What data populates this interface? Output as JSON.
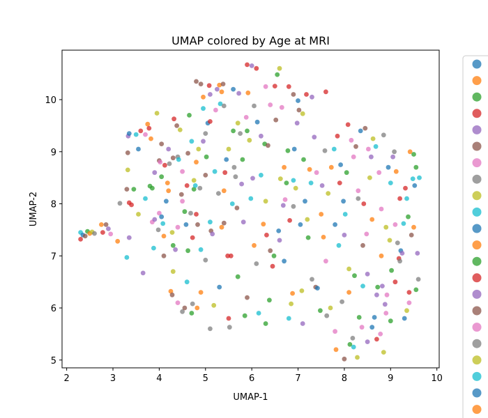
{
  "chart_data": {
    "type": "scatter",
    "title": "UMAP colored by Age at MRI",
    "xlabel": "UMAP-1",
    "ylabel": "UMAP-2",
    "xlim": [
      1.9,
      10.05
    ],
    "ylim": [
      4.85,
      10.95
    ],
    "xticks": [
      2,
      3,
      4,
      5,
      6,
      7,
      8,
      9,
      10
    ],
    "yticks": [
      5,
      6,
      7,
      8,
      9,
      10
    ],
    "grid": false,
    "legend": "outside-right, clipped, markers only",
    "marker_alpha": 0.75,
    "colors": [
      "#1f77b4",
      "#ff7f0e",
      "#2ca02c",
      "#d62728",
      "#9467bd",
      "#8c564b",
      "#e377c2",
      "#7f7f7f",
      "#bcbd22",
      "#17becf"
    ],
    "legend_marker_count": 23,
    "points": [
      [
        2.3,
        7.32,
        3
      ],
      [
        2.3,
        7.45,
        9
      ],
      [
        2.35,
        7.4,
        0
      ],
      [
        2.4,
        7.38,
        5
      ],
      [
        2.45,
        7.47,
        2
      ],
      [
        2.5,
        7.43,
        1
      ],
      [
        2.55,
        7.46,
        8
      ],
      [
        2.6,
        7.43,
        7
      ],
      [
        2.75,
        7.6,
        1
      ],
      [
        2.78,
        7.45,
        3
      ],
      [
        2.85,
        7.6,
        5
      ],
      [
        2.9,
        7.52,
        4
      ],
      [
        2.95,
        7.42,
        6
      ],
      [
        3.1,
        7.28,
        1
      ],
      [
        3.15,
        8.01,
        7
      ],
      [
        3.3,
        6.97,
        9
      ],
      [
        3.35,
        7.35,
        4
      ],
      [
        3.3,
        8.28,
        5
      ],
      [
        3.32,
        8.65,
        8
      ],
      [
        3.32,
        8.98,
        5
      ],
      [
        3.33,
        9.3,
        4
      ],
      [
        3.35,
        9.35,
        0
      ],
      [
        3.35,
        8.02,
        3
      ],
      [
        3.4,
        7.98,
        3
      ],
      [
        3.45,
        8.28,
        2
      ],
      [
        3.5,
        9.33,
        9
      ],
      [
        3.55,
        9.05,
        0
      ],
      [
        3.55,
        7.8,
        8
      ],
      [
        3.6,
        9.4,
        3
      ],
      [
        3.65,
        6.67,
        4
      ],
      [
        3.7,
        9.33,
        6
      ],
      [
        3.75,
        9.53,
        1
      ],
      [
        3.78,
        9.45,
        3
      ],
      [
        3.8,
        8.34,
        2
      ],
      [
        3.82,
        9.25,
        1
      ],
      [
        3.85,
        8.3,
        2
      ],
      [
        3.85,
        7.65,
        6
      ],
      [
        3.88,
        7.15,
        9
      ],
      [
        3.9,
        7.7,
        4
      ],
      [
        3.95,
        9.74,
        8
      ],
      [
        3.98,
        7.5,
        7
      ],
      [
        4.0,
        7.82,
        6
      ],
      [
        4.0,
        8.83,
        5
      ],
      [
        4.02,
        8.8,
        6
      ],
      [
        4.05,
        9.15,
        5
      ],
      [
        4.05,
        7.75,
        0
      ],
      [
        4.05,
        8.52,
        2
      ],
      [
        4.08,
        7.62,
        9
      ],
      [
        4.1,
        7.38,
        1
      ],
      [
        4.1,
        7.0,
        5
      ],
      [
        4.12,
        8.74,
        3
      ],
      [
        4.15,
        8.05,
        0
      ],
      [
        4.18,
        8.4,
        1
      ],
      [
        4.2,
        9.05,
        4
      ],
      [
        4.22,
        8.77,
        7
      ],
      [
        4.25,
        6.32,
        1
      ],
      [
        4.28,
        6.25,
        5
      ],
      [
        4.28,
        7.45,
        8
      ],
      [
        4.3,
        8.88,
        5
      ],
      [
        4.3,
        7.2,
        2
      ],
      [
        4.32,
        9.63,
        3
      ],
      [
        4.35,
        7.12,
        4
      ],
      [
        4.38,
        9.5,
        5
      ],
      [
        4.4,
        7.55,
        6
      ],
      [
        4.4,
        8.9,
        7
      ],
      [
        4.42,
        8.85,
        9
      ],
      [
        4.45,
        9.42,
        8
      ],
      [
        4.48,
        8.18,
        5
      ],
      [
        4.5,
        5.93,
        7
      ],
      [
        4.5,
        8.62,
        6
      ],
      [
        4.55,
        6.0,
        5
      ],
      [
        4.55,
        7.85,
        2
      ],
      [
        4.58,
        7.6,
        0
      ],
      [
        4.6,
        8.35,
        3
      ],
      [
        4.62,
        7.1,
        2
      ],
      [
        4.62,
        8.97,
        5
      ],
      [
        4.65,
        9.7,
        2
      ],
      [
        4.68,
        7.82,
        7
      ],
      [
        4.7,
        9.2,
        9
      ],
      [
        4.72,
        7.35,
        3
      ],
      [
        4.72,
        6.08,
        7
      ],
      [
        4.75,
        8.28,
        2
      ],
      [
        4.75,
        8.45,
        8
      ],
      [
        4.78,
        8.35,
        9
      ],
      [
        4.8,
        8.8,
        1
      ],
      [
        4.8,
        10.35,
        5
      ],
      [
        4.82,
        6.0,
        1
      ],
      [
        4.83,
        7.6,
        5
      ],
      [
        4.85,
        9.05,
        8
      ],
      [
        4.88,
        8.3,
        7
      ],
      [
        4.9,
        10.3,
        5
      ],
      [
        4.9,
        7.12,
        9
      ],
      [
        4.95,
        9.83,
        9
      ],
      [
        4.95,
        9.2,
        4
      ],
      [
        5.0,
        8.55,
        5
      ],
      [
        5.0,
        9.35,
        7
      ],
      [
        5.0,
        6.92,
        7
      ],
      [
        5.02,
        8.9,
        2
      ],
      [
        5.05,
        9.55,
        0
      ],
      [
        5.08,
        10.27,
        3
      ],
      [
        5.1,
        9.58,
        3
      ],
      [
        5.1,
        10.1,
        4
      ],
      [
        5.12,
        7.48,
        5
      ],
      [
        5.15,
        7.42,
        4
      ],
      [
        5.18,
        6.05,
        8
      ],
      [
        5.2,
        8.62,
        9
      ],
      [
        5.22,
        9.8,
        6
      ],
      [
        5.25,
        10.2,
        4
      ],
      [
        5.28,
        8.2,
        7
      ],
      [
        5.3,
        10.28,
        1
      ],
      [
        5.32,
        9.92,
        9
      ],
      [
        5.35,
        7.55,
        1
      ],
      [
        5.38,
        10.3,
        5
      ],
      [
        5.4,
        7.63,
        5
      ],
      [
        5.4,
        9.88,
        7
      ],
      [
        5.42,
        8.6,
        3
      ],
      [
        5.45,
        8.85,
        0
      ],
      [
        5.48,
        7.0,
        3
      ],
      [
        5.5,
        9.05,
        8
      ],
      [
        5.52,
        5.63,
        7
      ],
      [
        5.55,
        7.0,
        3
      ],
      [
        5.58,
        8.0,
        9
      ],
      [
        5.6,
        9.4,
        2
      ],
      [
        5.62,
        8.7,
        7
      ],
      [
        5.65,
        8.52,
        7
      ],
      [
        5.68,
        7.92,
        5
      ],
      [
        5.7,
        9.55,
        8
      ],
      [
        5.72,
        10.12,
        4
      ],
      [
        5.75,
        9.35,
        7
      ],
      [
        5.78,
        8.38,
        4
      ],
      [
        5.82,
        7.65,
        4
      ],
      [
        5.85,
        5.85,
        2
      ],
      [
        5.88,
        9.66,
        6
      ],
      [
        5.9,
        10.67,
        3
      ],
      [
        5.92,
        10.13,
        1
      ],
      [
        5.95,
        9.22,
        8
      ],
      [
        5.98,
        8.1,
        9
      ],
      [
        6.0,
        10.65,
        4
      ],
      [
        6.02,
        8.49,
        4
      ],
      [
        6.05,
        7.2,
        1
      ],
      [
        6.05,
        9.88,
        7
      ],
      [
        6.1,
        10.6,
        3
      ],
      [
        6.12,
        9.57,
        0
      ],
      [
        6.15,
        5.9,
        9
      ],
      [
        6.2,
        9.3,
        4
      ],
      [
        6.25,
        7.61,
        1
      ],
      [
        6.28,
        9.15,
        2
      ],
      [
        6.3,
        10.25,
        6
      ],
      [
        6.32,
        7.4,
        3
      ],
      [
        6.35,
        9.12,
        5
      ],
      [
        6.38,
        6.15,
        2
      ],
      [
        6.4,
        7.1,
        5
      ],
      [
        6.45,
        6.8,
        3
      ],
      [
        6.48,
        7.0,
        2
      ],
      [
        6.5,
        10.26,
        3
      ],
      [
        6.52,
        9.61,
        5
      ],
      [
        6.55,
        10.48,
        2
      ],
      [
        6.58,
        7.48,
        0
      ],
      [
        6.6,
        10.6,
        8
      ],
      [
        6.62,
        8.48,
        8
      ],
      [
        6.65,
        9.85,
        6
      ],
      [
        6.68,
        7.97,
        4
      ],
      [
        6.7,
        6.9,
        0
      ],
      [
        6.72,
        8.08,
        6
      ],
      [
        6.75,
        8.4,
        2
      ],
      [
        6.78,
        9.02,
        2
      ],
      [
        6.8,
        10.25,
        3
      ],
      [
        6.82,
        7.68,
        3
      ],
      [
        6.85,
        6.08,
        8
      ],
      [
        6.88,
        6.28,
        1
      ],
      [
        6.9,
        8.45,
        9
      ],
      [
        6.92,
        9.05,
        0
      ],
      [
        6.95,
        8.3,
        8
      ],
      [
        6.98,
        9.55,
        4
      ],
      [
        7.0,
        9.98,
        0
      ],
      [
        7.02,
        9.8,
        5
      ],
      [
        7.05,
        7.6,
        0
      ],
      [
        7.08,
        6.33,
        8
      ],
      [
        7.1,
        9.73,
        8
      ],
      [
        7.12,
        8.85,
        2
      ],
      [
        7.15,
        8.05,
        0
      ],
      [
        7.18,
        10.1,
        3
      ],
      [
        7.22,
        7.35,
        2
      ],
      [
        7.25,
        8.66,
        1
      ],
      [
        7.28,
        8.4,
        9
      ],
      [
        7.3,
        6.55,
        7
      ],
      [
        7.35,
        9.28,
        4
      ],
      [
        7.38,
        6.4,
        5
      ],
      [
        7.42,
        6.38,
        0
      ],
      [
        7.48,
        5.95,
        2
      ],
      [
        7.52,
        8.35,
        4
      ],
      [
        7.55,
        7.36,
        1
      ],
      [
        7.58,
        9.02,
        7
      ],
      [
        7.62,
        5.85,
        7
      ],
      [
        7.65,
        8.2,
        8
      ],
      [
        7.7,
        6.0,
        8
      ],
      [
        7.72,
        8.7,
        1
      ],
      [
        7.78,
        9.05,
        9
      ],
      [
        7.82,
        5.2,
        1
      ],
      [
        7.85,
        9.3,
        3
      ],
      [
        7.88,
        7.2,
        9
      ],
      [
        7.92,
        8.75,
        0
      ],
      [
        7.95,
        6.12,
        7
      ],
      [
        7.98,
        8.05,
        0
      ],
      [
        8.0,
        5.02,
        5
      ],
      [
        8.02,
        7.8,
        9
      ],
      [
        8.05,
        8.6,
        2
      ],
      [
        8.08,
        9.52,
        3
      ],
      [
        8.1,
        6.75,
        8
      ],
      [
        8.12,
        5.3,
        2
      ],
      [
        8.15,
        9.22,
        6
      ],
      [
        8.18,
        5.42,
        7
      ],
      [
        8.2,
        8.9,
        6
      ],
      [
        8.22,
        6.62,
        2
      ],
      [
        8.25,
        9.1,
        5
      ],
      [
        8.28,
        5.05,
        8
      ],
      [
        8.3,
        8.25,
        6
      ],
      [
        8.32,
        5.82,
        2
      ],
      [
        8.35,
        9.4,
        0
      ],
      [
        8.38,
        5.63,
        6
      ],
      [
        8.4,
        6.42,
        9
      ],
      [
        8.42,
        8.0,
        3
      ],
      [
        8.45,
        9.45,
        5
      ],
      [
        8.48,
        7.42,
        6
      ],
      [
        8.5,
        6.65,
        4
      ],
      [
        8.52,
        9.05,
        6
      ],
      [
        8.55,
        8.5,
        8
      ],
      [
        8.58,
        8.9,
        4
      ],
      [
        8.6,
        5.63,
        0
      ],
      [
        8.62,
        9.25,
        8
      ],
      [
        8.65,
        5.82,
        0
      ],
      [
        8.68,
        9.1,
        9
      ],
      [
        8.7,
        6.25,
        4
      ],
      [
        8.72,
        6.4,
        2
      ],
      [
        8.75,
        8.6,
        6
      ],
      [
        8.78,
        5.5,
        6
      ],
      [
        8.8,
        7.0,
        1
      ],
      [
        8.82,
        6.42,
        4
      ],
      [
        8.85,
        9.32,
        7
      ],
      [
        8.88,
        6.07,
        4
      ],
      [
        8.9,
        5.9,
        6
      ],
      [
        8.92,
        6.25,
        6
      ],
      [
        8.95,
        8.7,
        0
      ],
      [
        8.98,
        7.3,
        8
      ],
      [
        9.0,
        8.4,
        9
      ],
      [
        9.02,
        6.72,
        2
      ],
      [
        9.05,
        8.9,
        4
      ],
      [
        9.08,
        9.0,
        7
      ],
      [
        9.1,
        7.6,
        6
      ],
      [
        9.12,
        8.62,
        1
      ],
      [
        9.15,
        7.25,
        7
      ],
      [
        9.18,
        6.95,
        3
      ],
      [
        9.2,
        6.9,
        7
      ],
      [
        9.22,
        7.1,
        0
      ],
      [
        9.25,
        7.05,
        4
      ],
      [
        9.28,
        7.62,
        9
      ],
      [
        9.3,
        5.8,
        0
      ],
      [
        9.32,
        8.3,
        3
      ],
      [
        9.35,
        8.1,
        9
      ],
      [
        9.38,
        7.75,
        2
      ],
      [
        9.4,
        6.3,
        3
      ],
      [
        9.42,
        9.0,
        1
      ],
      [
        9.45,
        7.4,
        5
      ],
      [
        9.48,
        8.48,
        9
      ],
      [
        9.5,
        7.55,
        1
      ],
      [
        9.52,
        8.35,
        0
      ],
      [
        9.55,
        8.7,
        2
      ],
      [
        9.58,
        7.05,
        4
      ],
      [
        9.6,
        6.55,
        7
      ],
      [
        9.62,
        8.5,
        9
      ],
      [
        5.35,
        10.15,
        1
      ],
      [
        4.95,
        10.05,
        1
      ],
      [
        5.6,
        10.2,
        0
      ],
      [
        6.9,
        10.1,
        5
      ],
      [
        7.3,
        10.05,
        4
      ],
      [
        7.6,
        10.15,
        3
      ],
      [
        6.4,
        9.9,
        6
      ],
      [
        5.9,
        9.4,
        2
      ],
      [
        6.2,
        8.55,
        9
      ],
      [
        6.7,
        8.7,
        1
      ],
      [
        7.4,
        8.6,
        6
      ],
      [
        7.9,
        8.4,
        3
      ],
      [
        8.3,
        8.1,
        7
      ],
      [
        8.6,
        7.7,
        1
      ],
      [
        8.9,
        7.55,
        8
      ],
      [
        9.1,
        6.5,
        3
      ],
      [
        8.4,
        7.2,
        5
      ],
      [
        7.8,
        7.6,
        0
      ],
      [
        7.2,
        7.7,
        8
      ],
      [
        6.6,
        7.3,
        4
      ],
      [
        6.1,
        6.85,
        7
      ],
      [
        5.7,
        6.6,
        2
      ],
      [
        5.3,
        6.4,
        0
      ],
      [
        4.9,
        6.3,
        1
      ],
      [
        4.6,
        6.5,
        9
      ],
      [
        4.3,
        6.7,
        8
      ],
      [
        7.6,
        6.9,
        6
      ],
      [
        8.1,
        6.3,
        1
      ],
      [
        8.7,
        5.4,
        3
      ],
      [
        9.0,
        5.75,
        2
      ],
      [
        7.8,
        5.55,
        6
      ],
      [
        8.2,
        5.25,
        9
      ],
      [
        8.5,
        5.35,
        4
      ],
      [
        8.85,
        5.15,
        8
      ],
      [
        9.4,
        6.1,
        6
      ],
      [
        9.55,
        6.35,
        2
      ],
      [
        9.35,
        5.95,
        8
      ],
      [
        7.1,
        5.7,
        4
      ],
      [
        6.8,
        5.8,
        9
      ],
      [
        6.3,
        5.7,
        2
      ],
      [
        5.9,
        6.2,
        5
      ],
      [
        5.5,
        5.8,
        3
      ],
      [
        5.1,
        5.6,
        7
      ],
      [
        4.7,
        5.9,
        2
      ],
      [
        4.4,
        6.1,
        6
      ],
      [
        3.7,
        8.1,
        9
      ],
      [
        3.9,
        8.6,
        4
      ],
      [
        4.2,
        8.25,
        1
      ],
      [
        4.5,
        8.05,
        6
      ],
      [
        4.8,
        7.8,
        3
      ],
      [
        5.1,
        7.65,
        9
      ],
      [
        5.4,
        8.25,
        1
      ],
      [
        5.8,
        8.85,
        2
      ],
      [
        6.3,
        8.05,
        8
      ],
      [
        6.9,
        7.95,
        7
      ],
      [
        7.5,
        7.8,
        1
      ],
      [
        8.0,
        7.4,
        4
      ],
      [
        8.8,
        7.9,
        6
      ],
      [
        9.2,
        8.1,
        3
      ],
      [
        9.5,
        8.95,
        2
      ]
    ]
  }
}
